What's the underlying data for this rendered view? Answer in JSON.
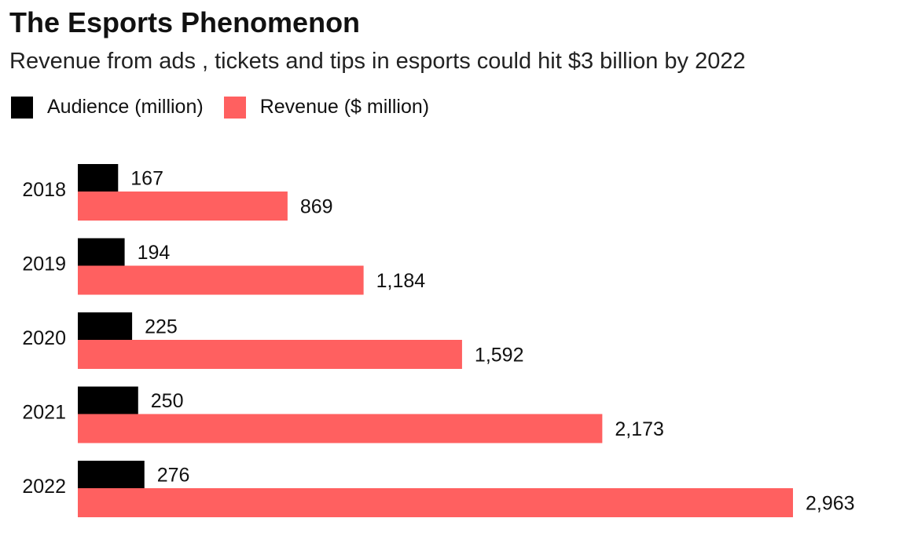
{
  "chart_data": {
    "type": "bar",
    "orientation": "horizontal",
    "title": "The Esports Phenomenon",
    "subtitle": "Revenue from ads , tickets and tips in esports could hit $3 billion by 2022",
    "categories": [
      "2018",
      "2019",
      "2020",
      "2021",
      "2022"
    ],
    "series": [
      {
        "name": "Audience (million)",
        "color": "#000000",
        "values": [
          167,
          194,
          225,
          250,
          276
        ],
        "labels": [
          "167",
          "194",
          "225",
          "250",
          "276"
        ]
      },
      {
        "name": "Revenue ($ million)",
        "color": "#ff6060",
        "values": [
          869,
          1184,
          1592,
          2173,
          2963
        ],
        "labels": [
          "869",
          "1,184",
          "1,592",
          "2,173",
          "2,963"
        ]
      }
    ],
    "xlim": [
      0,
      2963
    ],
    "grid": false,
    "legend_position": "top-left"
  }
}
